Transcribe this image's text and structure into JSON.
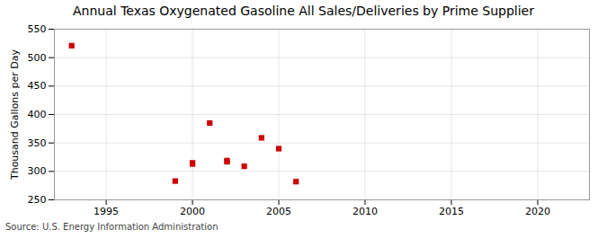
{
  "chart_data": {
    "type": "scatter",
    "title": "Annual Texas Oxygenated Gasoline All Sales/Deliveries by Prime Supplier",
    "ylabel": "Thousand Gallons per Day",
    "source": "Source: U.S. Energy Information Administration",
    "x": [
      1993,
      1999,
      2000,
      2000,
      2001,
      2002,
      2002,
      2003,
      2004,
      2005,
      2006
    ],
    "values": [
      521,
      283,
      313,
      315,
      385,
      317,
      319,
      309,
      359,
      340,
      282
    ],
    "color": "#cc0000",
    "marker": "square",
    "xlim": [
      1992,
      2023
    ],
    "ylim": [
      250,
      550
    ],
    "xticks": [
      1995,
      2000,
      2005,
      2010,
      2015,
      2020
    ],
    "yticks": [
      250,
      300,
      350,
      400,
      450,
      500,
      550
    ],
    "grid": true
  }
}
